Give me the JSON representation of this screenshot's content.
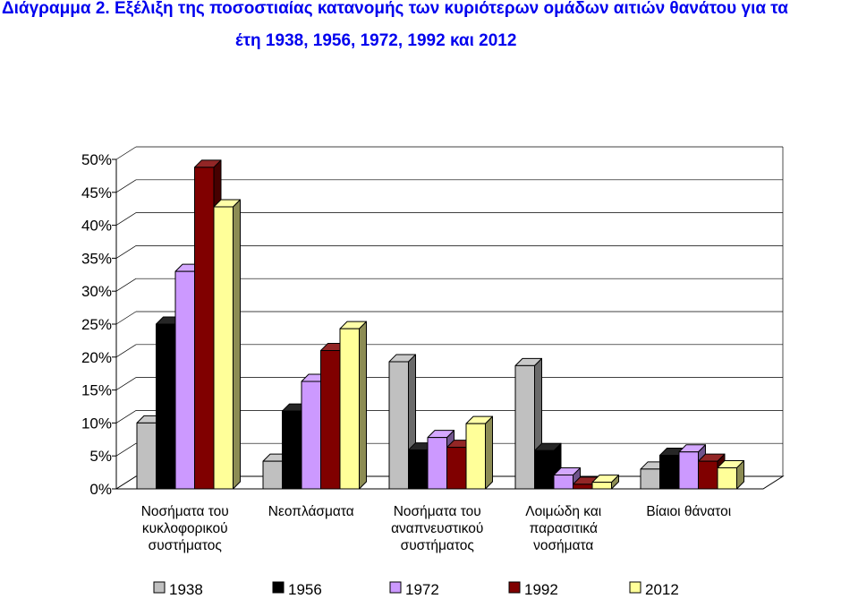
{
  "title": {
    "line1": "Διάγραμμα 2.  Εξέλιξη της ποσοστιαίας κατανομής των κυριότερων ομάδων αιτιών θανάτου για τα",
    "line2": "έτη 1938, 1956, 1972, 1992 και 2012"
  },
  "chart_data": {
    "type": "bar",
    "subtype": "3d-clustered-column",
    "title": "Διάγραμμα 2.  Εξέλιξη της ποσοστιαίας κατανομής των κυριότερων ομάδων αιτιών θανάτου για τα έτη 1938, 1956, 1972, 1992 και 2012",
    "categories": [
      [
        "Νοσήματα του",
        "κυκλοφορικού",
        "συστήματος"
      ],
      [
        "Νεοπλάσματα"
      ],
      [
        "Νοσήματα του",
        "αναπνευστικού",
        "συστήματος"
      ],
      [
        "Λοιμώδη και",
        "παρασιτικά",
        "νοσήματα"
      ],
      [
        "Βίαιοι θάνατοι"
      ]
    ],
    "series": [
      {
        "name": "1938",
        "color": "#c0c0c0",
        "values": [
          10.0,
          4.2,
          19.3,
          18.7,
          3.0
        ]
      },
      {
        "name": "1956",
        "color": "#000000",
        "values": [
          25.0,
          11.8,
          5.9,
          5.8,
          5.1
        ]
      },
      {
        "name": "1972",
        "color": "#cc99ff",
        "values": [
          33.0,
          16.3,
          7.8,
          2.1,
          5.6
        ]
      },
      {
        "name": "1992",
        "color": "#800000",
        "values": [
          48.8,
          21.0,
          6.3,
          0.7,
          4.2
        ]
      },
      {
        "name": "2012",
        "color": "#ffff99",
        "values": [
          42.8,
          24.3,
          9.9,
          1.0,
          3.2
        ]
      }
    ],
    "yticks": [
      "0%",
      "5%",
      "10%",
      "15%",
      "20%",
      "25%",
      "30%",
      "35%",
      "40%",
      "45%",
      "50%"
    ],
    "ylim": [
      0,
      50
    ],
    "grid": true,
    "legend": "bottom"
  }
}
